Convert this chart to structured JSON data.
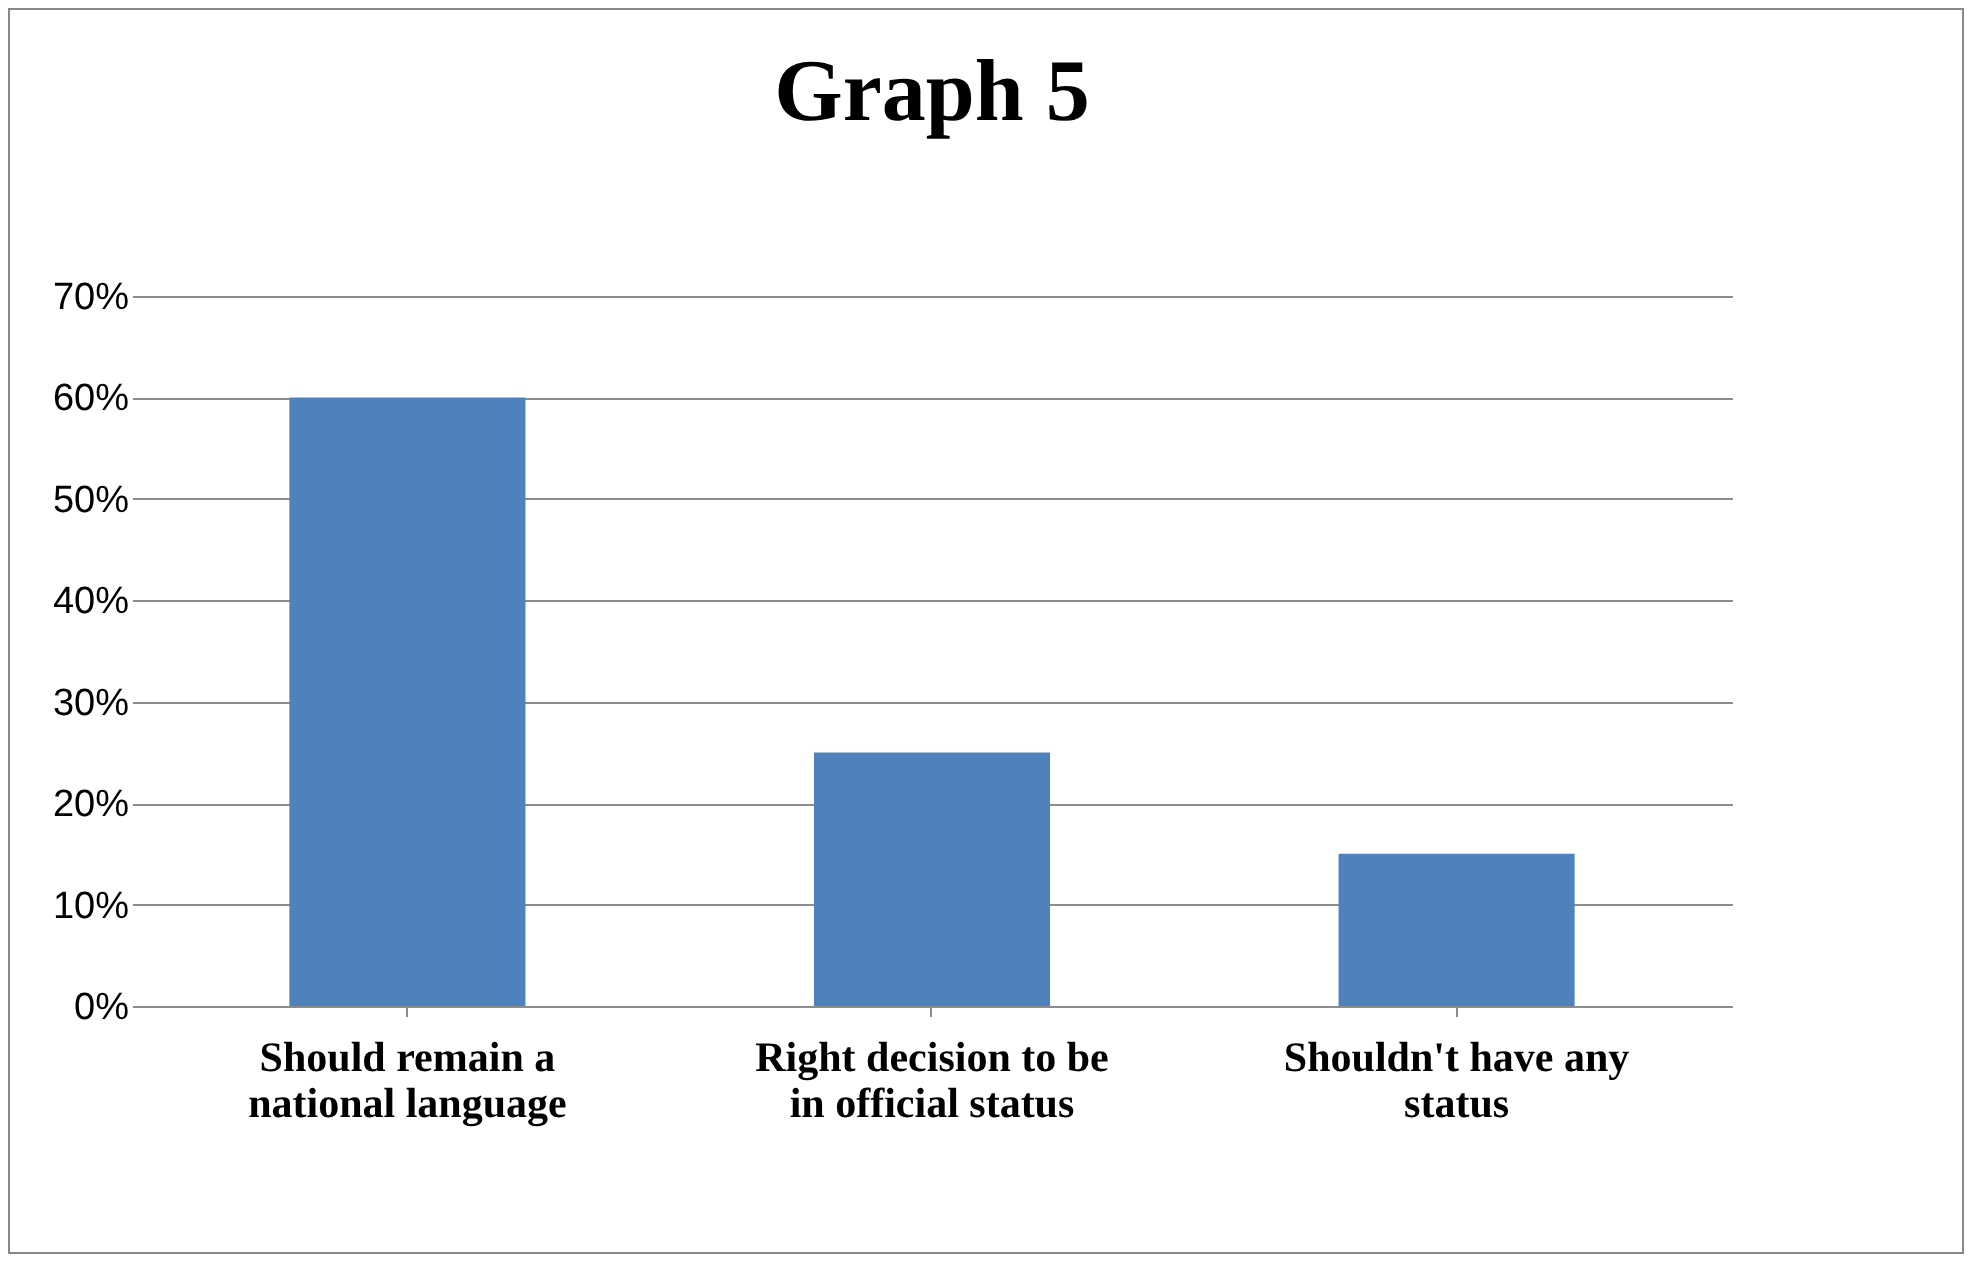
{
  "chart_data": {
    "type": "bar",
    "title": "Graph 5",
    "categories": [
      "Should remain a national language",
      "Right decision to be in official status",
      "Shouldn't have any status"
    ],
    "values": [
      60,
      25,
      15
    ],
    "color": "#4f81bd",
    "ylim": [
      0,
      70
    ],
    "yticks": [
      {
        "value": 0,
        "label": "0%"
      },
      {
        "value": 10,
        "label": "10%"
      },
      {
        "value": 20,
        "label": "20%"
      },
      {
        "value": 30,
        "label": "30%"
      },
      {
        "value": 40,
        "label": "40%"
      },
      {
        "value": 50,
        "label": "50%"
      },
      {
        "value": 60,
        "label": "60%"
      },
      {
        "value": 70,
        "label": "70%"
      }
    ],
    "grid": true
  }
}
